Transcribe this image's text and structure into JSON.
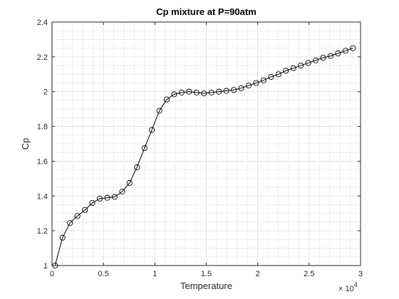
{
  "chart_data": {
    "type": "line",
    "title": "Cp mixture at P=90atm",
    "xlabel": "Temperature",
    "ylabel": "Cp",
    "x_exponent_label": "× 10",
    "x_exponent_power": "4",
    "xlim": [
      0,
      30000
    ],
    "ylim": [
      1,
      2.4
    ],
    "xticks": [
      0,
      5000,
      10000,
      15000,
      20000,
      25000,
      30000
    ],
    "xtick_labels": [
      "0",
      "0.5",
      "1",
      "1.5",
      "2",
      "2.5",
      "3"
    ],
    "yticks": [
      1,
      1.2,
      1.4,
      1.6,
      1.8,
      2,
      2.2,
      2.4
    ],
    "ytick_labels": [
      "1",
      "1.2",
      "1.4",
      "1.6",
      "1.8",
      "2",
      "2.2",
      "2.4"
    ],
    "grid": true,
    "minor_grid": true,
    "marker": "circle",
    "line_color": "#000000",
    "series": [
      {
        "x": [
          300,
          1020,
          1750,
          2470,
          3200,
          3920,
          4640,
          5370,
          6090,
          6820,
          7540,
          8260,
          8990,
          9710,
          10440,
          11160,
          11880,
          12610,
          13330,
          14060,
          14780,
          15500,
          16230,
          16950,
          17680,
          18400,
          19120,
          19850,
          20570,
          21300,
          22020,
          22740,
          23470,
          24190,
          24920,
          25640,
          26360,
          27090,
          27810,
          28540,
          29260
        ],
        "y": [
          1.0,
          1.16,
          1.245,
          1.285,
          1.32,
          1.36,
          1.385,
          1.39,
          1.395,
          1.425,
          1.475,
          1.565,
          1.675,
          1.78,
          1.89,
          1.955,
          1.985,
          1.995,
          2.0,
          1.995,
          1.99,
          1.995,
          2.0,
          2.005,
          2.01,
          2.02,
          2.035,
          2.05,
          2.065,
          2.085,
          2.1,
          2.12,
          2.135,
          2.15,
          2.165,
          2.18,
          2.195,
          2.205,
          2.22,
          2.235,
          2.25
        ]
      }
    ]
  }
}
